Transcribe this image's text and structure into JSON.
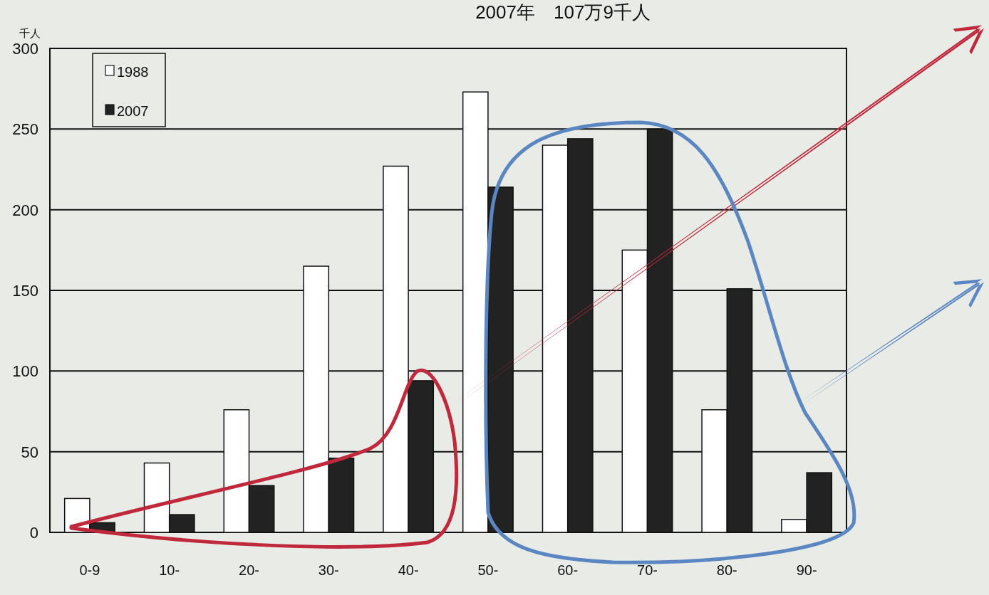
{
  "chart_data": {
    "type": "bar",
    "title": "2007年　107万9千人",
    "ylabel": "千人",
    "categories": [
      "0-9",
      "10-",
      "20-",
      "30-",
      "40-",
      "50-",
      "60-",
      "70-",
      "80-",
      "90-"
    ],
    "series": [
      {
        "name": "1988",
        "color": "#ffffff",
        "values": [
          21,
          43,
          76,
          165,
          227,
          273,
          240,
          175,
          76,
          8
        ]
      },
      {
        "name": "2007",
        "color": "#222222",
        "values": [
          6,
          11,
          29,
          46,
          94,
          214,
          244,
          250,
          151,
          37
        ]
      }
    ],
    "ylim": [
      0,
      300
    ],
    "yticks": [
      0,
      50,
      100,
      150,
      200,
      250,
      300
    ],
    "grid": "y",
    "legend": "top left"
  }
}
